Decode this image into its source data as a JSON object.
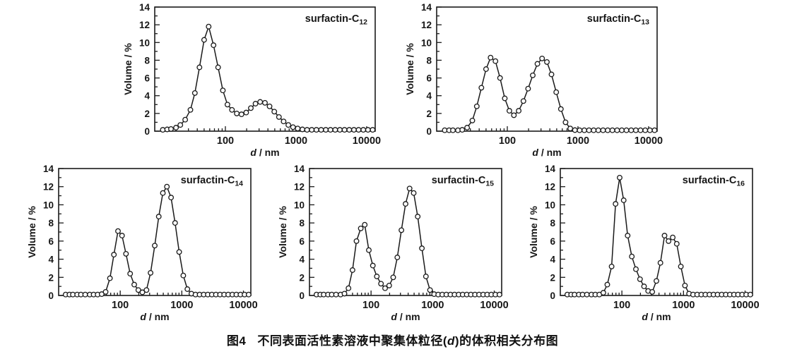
{
  "style": {
    "ink": "#1a1a1a",
    "paper": "#ffffff",
    "marker_fill": "#ffffff"
  },
  "caption": {
    "fig_label": "图4",
    "text_pre": "不同表面活性素溶液中聚集体粒径(",
    "text_var": "d",
    "text_post": ")的体积相关分布图"
  },
  "chart_data": {
    "type": "line",
    "marker": "open-circle",
    "xscale": "log",
    "grid": "off",
    "legend": "none",
    "xlim": [
      10,
      13200
    ],
    "ylim": [
      0,
      14
    ],
    "y_major_step": 2,
    "y_minor_step": 1,
    "x_ticks": [
      100,
      1000,
      10000
    ],
    "xlabel_var": "d",
    "xlabel_rest": " / nm",
    "ylabel": "Volume / %",
    "x_nm": [
      13,
      15,
      17,
      20,
      23,
      27,
      32,
      37,
      43,
      50,
      58,
      68,
      79,
      92,
      107,
      124,
      145,
      169,
      197,
      229,
      267,
      311,
      363,
      422,
      492,
      573,
      668,
      778,
      906,
      1056,
      1230,
      1433,
      1670,
      1945,
      2266,
      2640,
      3075,
      3583,
      4174,
      4863,
      5665,
      6600,
      7688,
      8957,
      10435,
      12157
    ],
    "series": [
      {
        "label": "surfactin-C",
        "sub": "12",
        "peaks_nm": [
          55,
          300
        ],
        "peak_heights_pct": [
          11.8,
          3.3
        ],
        "values": [
          0.15,
          0.2,
          0.25,
          0.4,
          0.7,
          1.3,
          2.4,
          4.3,
          7.2,
          10.3,
          11.8,
          9.7,
          7.2,
          4.6,
          3.0,
          2.4,
          2.0,
          1.9,
          2.1,
          2.6,
          3.1,
          3.3,
          3.2,
          2.8,
          2.2,
          1.6,
          1.1,
          0.7,
          0.45,
          0.3,
          0.2,
          0.15,
          0.15,
          0.15,
          0.15,
          0.15,
          0.15,
          0.15,
          0.15,
          0.15,
          0.15,
          0.15,
          0.15,
          0.15,
          0.15,
          0.15
        ]
      },
      {
        "label": "surfactin-C",
        "sub": "13",
        "peaks_nm": [
          58,
          300
        ],
        "peak_heights_pct": [
          8.3,
          8.2
        ],
        "values": [
          0.1,
          0.1,
          0.1,
          0.1,
          0.15,
          0.4,
          1.2,
          2.8,
          4.9,
          7.0,
          8.3,
          7.9,
          6.0,
          3.7,
          2.3,
          1.8,
          2.3,
          3.4,
          4.8,
          6.3,
          7.6,
          8.2,
          7.8,
          6.4,
          4.4,
          2.5,
          1.0,
          0.3,
          0.12,
          0.1,
          0.1,
          0.1,
          0.1,
          0.1,
          0.1,
          0.1,
          0.1,
          0.1,
          0.1,
          0.1,
          0.1,
          0.1,
          0.1,
          0.1,
          0.1,
          0.1
        ]
      },
      {
        "label": "surfactin-C",
        "sub": "14",
        "peaks_nm": [
          95,
          550
        ],
        "peak_heights_pct": [
          7.1,
          12.0
        ],
        "values": [
          0.1,
          0.1,
          0.1,
          0.1,
          0.1,
          0.1,
          0.1,
          0.1,
          0.1,
          0.15,
          0.4,
          1.9,
          4.5,
          7.1,
          6.6,
          4.6,
          2.4,
          1.2,
          0.6,
          0.35,
          0.6,
          2.5,
          5.5,
          8.7,
          11.3,
          12.0,
          10.8,
          8.0,
          4.8,
          2.2,
          0.7,
          0.2,
          0.1,
          0.1,
          0.1,
          0.1,
          0.1,
          0.1,
          0.1,
          0.1,
          0.1,
          0.1,
          0.1,
          0.1,
          0.1,
          0.1
        ]
      },
      {
        "label": "surfactin-C",
        "sub": "15",
        "peaks_nm": [
          75,
          420
        ],
        "peak_heights_pct": [
          7.8,
          11.8
        ],
        "values": [
          0.1,
          0.1,
          0.1,
          0.1,
          0.1,
          0.1,
          0.1,
          0.2,
          0.8,
          2.8,
          6.0,
          7.4,
          7.8,
          5.0,
          3.3,
          2.1,
          1.3,
          0.8,
          1.1,
          2.0,
          4.2,
          7.2,
          10.1,
          11.8,
          11.3,
          8.7,
          5.2,
          2.1,
          0.6,
          0.15,
          0.1,
          0.1,
          0.1,
          0.1,
          0.1,
          0.1,
          0.1,
          0.1,
          0.1,
          0.1,
          0.1,
          0.1,
          0.1,
          0.1,
          0.1,
          0.1
        ]
      },
      {
        "label": "surfactin-C",
        "sub": "16",
        "peaks_nm": [
          90,
          490,
          670
        ],
        "peak_heights_pct": [
          13.0,
          6.6,
          6.4
        ],
        "values": [
          0.1,
          0.1,
          0.1,
          0.1,
          0.1,
          0.1,
          0.1,
          0.1,
          0.1,
          0.3,
          1.2,
          3.2,
          10.1,
          13.0,
          10.5,
          6.6,
          4.3,
          2.9,
          1.8,
          1.0,
          0.5,
          0.4,
          1.6,
          3.6,
          6.6,
          6.0,
          6.4,
          5.7,
          3.2,
          1.1,
          0.2,
          0.1,
          0.1,
          0.1,
          0.1,
          0.1,
          0.1,
          0.1,
          0.1,
          0.1,
          0.1,
          0.1,
          0.1,
          0.1,
          0.1,
          0.1
        ]
      }
    ]
  }
}
